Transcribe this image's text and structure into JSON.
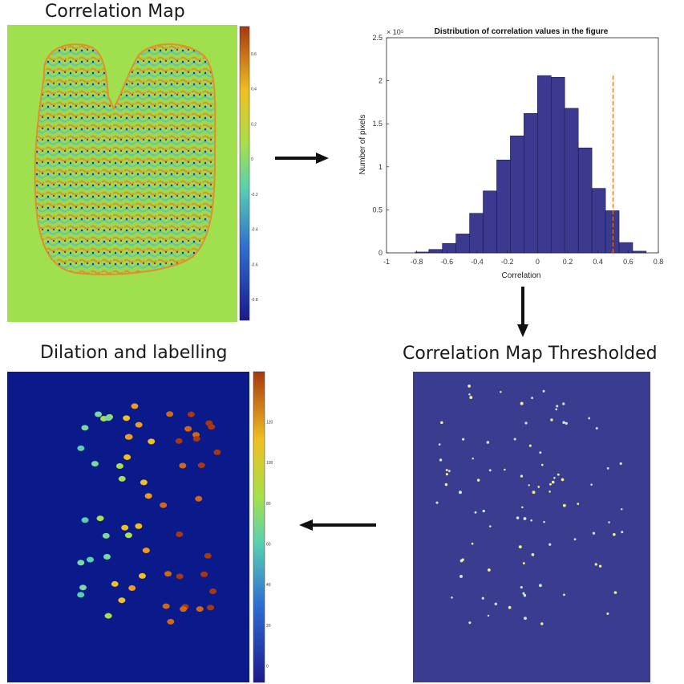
{
  "panels": {
    "correlation_map": {
      "title": "Correlation Map",
      "colorbar_ticks": [
        "0.6",
        "0.4",
        "0.2",
        "0",
        "-0.2",
        "-0.4",
        "-0.6",
        "-0.8"
      ]
    },
    "thresholded": {
      "title": "Correlation Map Thresholded"
    },
    "labelling": {
      "title": "Dilation and labelling",
      "colorbar_ticks": [
        "120",
        "100",
        "80",
        "60",
        "40",
        "20",
        "0"
      ]
    }
  },
  "colors": {
    "map_background": "#a0e04e",
    "thresh_background": "#3a3d8f",
    "label_background": "#0a1a8a",
    "bar_fill": "#3b3a8e",
    "threshold_line": "#e07020"
  },
  "chart_data": {
    "type": "bar",
    "title": "Distribution of correlation values in the figure",
    "xlabel": "Correlation",
    "ylabel": "Number of pixels",
    "y_multiplier_label": "× 10⁵",
    "xlim": [
      -1,
      0.8
    ],
    "ylim": [
      0,
      2.5
    ],
    "x_ticks": [
      "-1",
      "-0.8",
      "-0.6",
      "-0.4",
      "-0.2",
      "0",
      "0.2",
      "0.4",
      "0.6",
      "0.8"
    ],
    "y_ticks": [
      "0",
      "0.5",
      "1",
      "1.5",
      "2",
      "2.5"
    ],
    "bin_width": 0.09,
    "bin_centers": [
      -0.855,
      -0.765,
      -0.675,
      -0.585,
      -0.495,
      -0.405,
      -0.315,
      -0.225,
      -0.135,
      -0.045,
      0.045,
      0.135,
      0.225,
      0.315,
      0.405,
      0.495,
      0.585,
      0.675
    ],
    "values": [
      0.0,
      0.01,
      0.04,
      0.11,
      0.22,
      0.46,
      0.72,
      1.08,
      1.36,
      1.62,
      2.06,
      2.04,
      1.68,
      1.22,
      0.75,
      0.49,
      0.12,
      0.02
    ],
    "threshold": 0.5
  }
}
